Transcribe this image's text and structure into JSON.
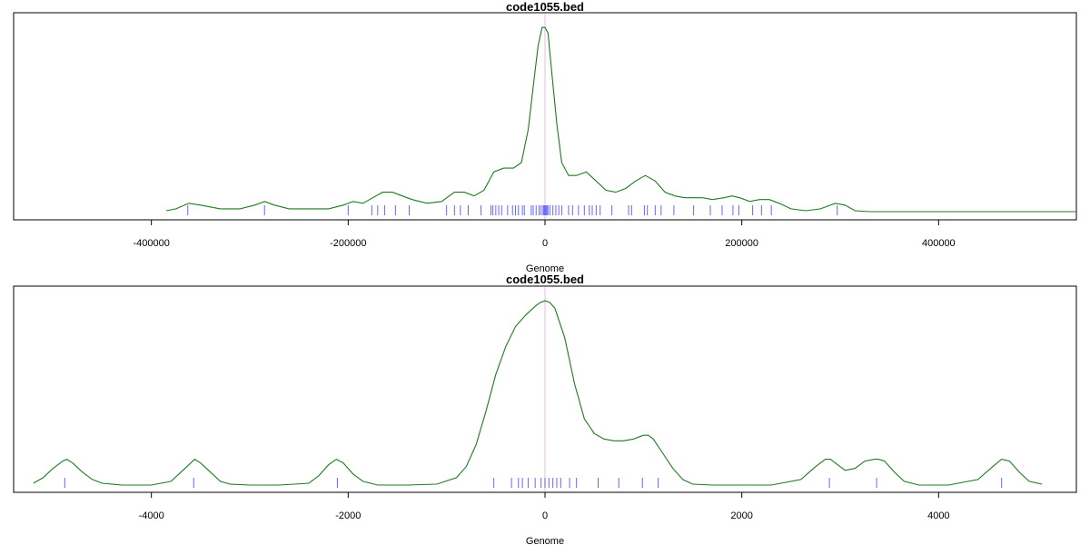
{
  "chart_data": [
    {
      "type": "line",
      "title": "code1055.bed",
      "xlabel": "Genome",
      "ylabel": "",
      "xlim": [
        -540000,
        540000
      ],
      "ylim": [
        0,
        1.04
      ],
      "xticks": [
        -400000,
        -200000,
        0,
        200000,
        400000
      ],
      "xtick_labels": [
        "-400000",
        "-200000",
        "0",
        "200000",
        "400000"
      ],
      "grid": false,
      "series": [
        {
          "x": [
            -385000,
            -375000,
            -362000,
            -350000,
            -330000,
            -310000,
            -295000,
            -285000,
            -275000,
            -260000,
            -240000,
            -220000,
            -205000,
            -195000,
            -185000,
            -175000,
            -165000,
            -155000,
            -145000,
            -135000,
            -120000,
            -105000,
            -92000,
            -82000,
            -72000,
            -62000,
            -52000,
            -42000,
            -32000,
            -24000,
            -17000,
            -12000,
            -7000,
            -3000,
            0,
            3000,
            7000,
            12000,
            17000,
            24000,
            32000,
            42000,
            52000,
            62000,
            72000,
            82000,
            92000,
            102000,
            112000,
            122000,
            132000,
            142000,
            150000,
            160000,
            170000,
            182000,
            190000,
            198000,
            208000,
            218000,
            228000,
            238000,
            250000,
            265000,
            280000,
            295000,
            305000,
            315000,
            330000,
            360000,
            400000,
            450000,
            500000,
            540000
          ],
          "y": [
            0.01,
            0.02,
            0.05,
            0.04,
            0.02,
            0.02,
            0.04,
            0.06,
            0.04,
            0.02,
            0.02,
            0.02,
            0.04,
            0.06,
            0.05,
            0.08,
            0.11,
            0.11,
            0.09,
            0.07,
            0.05,
            0.06,
            0.11,
            0.11,
            0.09,
            0.12,
            0.22,
            0.24,
            0.24,
            0.27,
            0.45,
            0.68,
            0.9,
            1.0,
            1.0,
            0.97,
            0.75,
            0.48,
            0.27,
            0.2,
            0.2,
            0.22,
            0.17,
            0.12,
            0.11,
            0.13,
            0.17,
            0.2,
            0.17,
            0.11,
            0.09,
            0.08,
            0.08,
            0.08,
            0.07,
            0.08,
            0.09,
            0.08,
            0.06,
            0.07,
            0.07,
            0.05,
            0.02,
            0.01,
            0.02,
            0.05,
            0.04,
            0.01,
            0.005,
            0.005,
            0.005,
            0.005,
            0.005,
            0.005
          ]
        }
      ],
      "rug_x": [
        -363000,
        -285000,
        -200000,
        -176000,
        -170000,
        -163000,
        -152000,
        -138000,
        -100000,
        -92000,
        -86000,
        -78000,
        -65000,
        -55000,
        -53000,
        -50000,
        -47000,
        -44000,
        -38000,
        -33000,
        -30000,
        -27000,
        -23000,
        -21000,
        -14000,
        -12000,
        -9000,
        -6000,
        -4000,
        -2000,
        -1000,
        0,
        1000,
        2000,
        3000,
        5000,
        8000,
        11000,
        14000,
        17000,
        24000,
        28000,
        34000,
        40000,
        45000,
        48000,
        52000,
        56000,
        68000,
        85000,
        88000,
        101000,
        104000,
        112000,
        118000,
        131000,
        151000,
        168000,
        180000,
        191000,
        197000,
        211000,
        220000,
        230000,
        297000
      ]
    },
    {
      "type": "line",
      "title": "code1055.bed",
      "xlabel": "Genome",
      "ylabel": "",
      "xlim": [
        -5400,
        5400
      ],
      "ylim": [
        0,
        1.04
      ],
      "xticks": [
        -4000,
        -2000,
        0,
        2000,
        4000
      ],
      "xtick_labels": [
        "-4000",
        "-2000",
        "0",
        "2000",
        "4000"
      ],
      "grid": false,
      "series": [
        {
          "x": [
            -5200,
            -5100,
            -5000,
            -4900,
            -4860,
            -4800,
            -4700,
            -4600,
            -4500,
            -4300,
            -4000,
            -3800,
            -3700,
            -3600,
            -3560,
            -3500,
            -3400,
            -3300,
            -3200,
            -3000,
            -2700,
            -2400,
            -2300,
            -2200,
            -2120,
            -2050,
            -1950,
            -1850,
            -1700,
            -1400,
            -1100,
            -900,
            -800,
            -700,
            -600,
            -500,
            -400,
            -300,
            -200,
            -100,
            -50,
            0,
            50,
            100,
            200,
            300,
            400,
            500,
            600,
            700,
            800,
            900,
            1000,
            1050,
            1100,
            1200,
            1300,
            1400,
            1500,
            1700,
            2000,
            2300,
            2600,
            2750,
            2850,
            2900,
            2950,
            3050,
            3150,
            3250,
            3350,
            3390,
            3450,
            3550,
            3650,
            3800,
            4100,
            4400,
            4550,
            4640,
            4720,
            4820,
            4920,
            5050
          ],
          "y": [
            0.01,
            0.04,
            0.09,
            0.13,
            0.14,
            0.12,
            0.07,
            0.03,
            0.01,
            0.0,
            0.0,
            0.02,
            0.07,
            0.12,
            0.14,
            0.12,
            0.07,
            0.02,
            0.005,
            0.0,
            0.0,
            0.01,
            0.05,
            0.11,
            0.14,
            0.12,
            0.06,
            0.02,
            0.0,
            0.0,
            0.005,
            0.04,
            0.1,
            0.22,
            0.4,
            0.6,
            0.75,
            0.86,
            0.92,
            0.97,
            0.99,
            1.0,
            0.99,
            0.96,
            0.8,
            0.55,
            0.36,
            0.28,
            0.25,
            0.24,
            0.24,
            0.25,
            0.27,
            0.27,
            0.25,
            0.17,
            0.09,
            0.03,
            0.005,
            0.0,
            0.0,
            0.0,
            0.03,
            0.1,
            0.14,
            0.14,
            0.12,
            0.08,
            0.09,
            0.13,
            0.14,
            0.14,
            0.13,
            0.07,
            0.02,
            0.0,
            0.0,
            0.03,
            0.1,
            0.14,
            0.13,
            0.07,
            0.02,
            0.005
          ]
        }
      ],
      "rug_x": [
        -4880,
        -3570,
        -2110,
        -520,
        -340,
        -270,
        -230,
        -170,
        -100,
        -40,
        0,
        40,
        80,
        120,
        160,
        250,
        320,
        540,
        750,
        990,
        1150,
        2890,
        3370,
        4640
      ]
    }
  ]
}
